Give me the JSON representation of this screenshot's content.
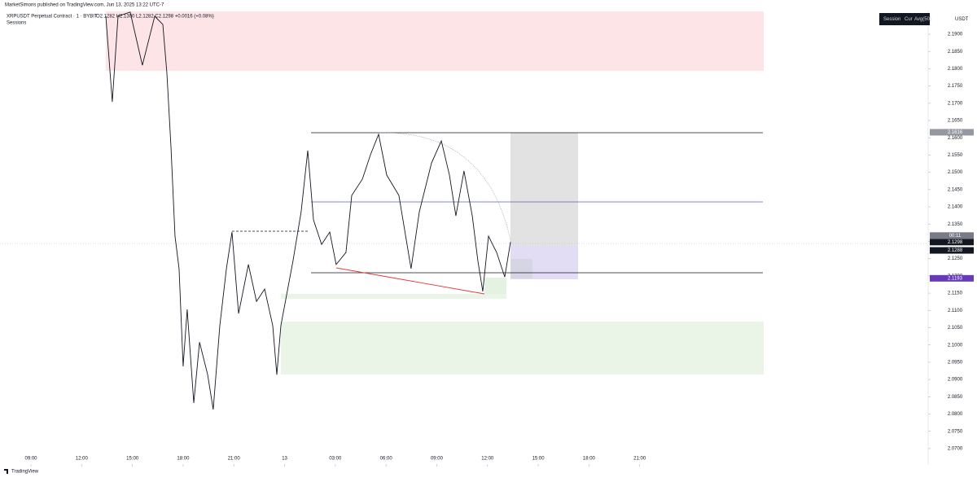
{
  "header": {
    "publisher": "MarketSimons published on TradingView.com, Jun 13, 2025 13:22 UTC-7",
    "symbol": "XRPUSDT Perpetual Contract · 1 · BYBIT",
    "ohlc": "O2.1282 H2.1300 L2.1282 C2.1298 +0.0016 (+0.08%)",
    "indicator": "Sessions"
  },
  "toolbar": {
    "items": [
      "Session",
      "Cur",
      "Avg(50)"
    ]
  },
  "currency": "USDT",
  "footer": "TradingView",
  "chart_data": {
    "type": "line",
    "color": "#131722",
    "x": [
      4.43,
      4.81,
      5.15,
      5.87,
      6.59,
      7.32,
      7.8,
      8.04,
      8.28,
      8.52,
      8.76,
      9.0,
      9.24,
      9.63,
      9.97,
      10.45,
      10.78,
      11.17,
      11.56,
      11.89,
      12.28,
      12.86,
      13.34,
      13.82,
      14.3,
      14.54,
      14.78,
      15.5,
      15.98,
      16.37,
      16.71,
      17.19,
      17.67,
      18.05,
      18.63,
      18.97,
      19.6,
      20.08,
      20.56,
      21.04,
      21.76,
      22.48,
      22.97,
      23.69,
      24.27,
      24.75,
      25.13,
      25.61,
      26.1,
      26.43,
      26.72,
      27.06,
      27.54,
      28.02,
      28.36
    ],
    "values": [
      2.1952,
      2.1704,
      2.1952,
      2.1964,
      2.181,
      2.1952,
      2.1928,
      2.1787,
      2.1575,
      2.1315,
      2.1221,
      2.0938,
      2.1103,
      2.0832,
      2.1008,
      2.0914,
      2.0813,
      2.1056,
      2.1221,
      2.1327,
      2.1091,
      2.1233,
      2.1126,
      2.1162,
      2.1056,
      2.0914,
      2.1056,
      2.1244,
      2.1386,
      2.1563,
      2.1362,
      2.1291,
      2.1327,
      2.1233,
      2.1268,
      2.1433,
      2.148,
      2.1551,
      2.161,
      2.1492,
      2.1433,
      2.1221,
      2.1386,
      2.1527,
      2.1591,
      2.1492,
      2.1374,
      2.1504,
      2.1374,
      2.1244,
      2.1155,
      2.1315,
      2.1268,
      2.1197,
      2.1298
    ],
    "xlim": [
      -1.83,
      53.06
    ],
    "xticks": [
      {
        "value": 0,
        "label": "09:00"
      },
      {
        "value": 3,
        "label": "12:00"
      },
      {
        "value": 6,
        "label": "15:00"
      },
      {
        "value": 9,
        "label": "18:00"
      },
      {
        "value": 12,
        "label": "21:00"
      },
      {
        "value": 15,
        "label": "13"
      },
      {
        "value": 18,
        "label": "03:00"
      },
      {
        "value": 21,
        "label": "06:00"
      },
      {
        "value": 24,
        "label": "09:00"
      },
      {
        "value": 27,
        "label": "12:00"
      },
      {
        "value": 30,
        "label": "15:00"
      },
      {
        "value": 33,
        "label": "18:00"
      },
      {
        "value": 36,
        "label": "21:00"
      }
    ],
    "ylim": [
      2.0655,
      2.1966
    ],
    "yticks": [
      {
        "value": 2.19,
        "label": "2.1900"
      },
      {
        "value": 2.185,
        "label": "2.1850"
      },
      {
        "value": 2.18,
        "label": "2.1800"
      },
      {
        "value": 2.175,
        "label": "2.1750"
      },
      {
        "value": 2.17,
        "label": "2.1700"
      },
      {
        "value": 2.165,
        "label": "2.1650"
      },
      {
        "value": 2.16,
        "label": "2.1600"
      },
      {
        "value": 2.155,
        "label": "2.1550"
      },
      {
        "value": 2.15,
        "label": "2.1500"
      },
      {
        "value": 2.145,
        "label": "2.1450"
      },
      {
        "value": 2.14,
        "label": "2.1400"
      },
      {
        "value": 2.135,
        "label": "2.1350"
      },
      {
        "value": 2.13,
        "label": "2.1300"
      },
      {
        "value": 2.125,
        "label": "2.1250"
      },
      {
        "value": 2.12,
        "label": "2.1200"
      },
      {
        "value": 2.115,
        "label": "2.1150"
      },
      {
        "value": 2.11,
        "label": "2.1100"
      },
      {
        "value": 2.105,
        "label": "2.1050"
      },
      {
        "value": 2.1,
        "label": "2.1000"
      },
      {
        "value": 2.095,
        "label": "2.0950"
      },
      {
        "value": 2.09,
        "label": "2.0900"
      },
      {
        "value": 2.085,
        "label": "2.0850"
      },
      {
        "value": 2.08,
        "label": "2.0800"
      },
      {
        "value": 2.075,
        "label": "2.0750"
      },
      {
        "value": 2.07,
        "label": "2.0700"
      }
    ],
    "price_labels": [
      {
        "value": 2.1616,
        "label": "2.1616",
        "color": "#9598a1"
      },
      {
        "value": 2.1298,
        "label": "2.1298",
        "color": "#131722"
      },
      {
        "value": 2.1288,
        "label": "2.1288",
        "color": "#131722"
      },
      {
        "value": 2.1193,
        "label": "2.1193",
        "color": "#673ab7"
      }
    ],
    "countdown": "00:11"
  }
}
